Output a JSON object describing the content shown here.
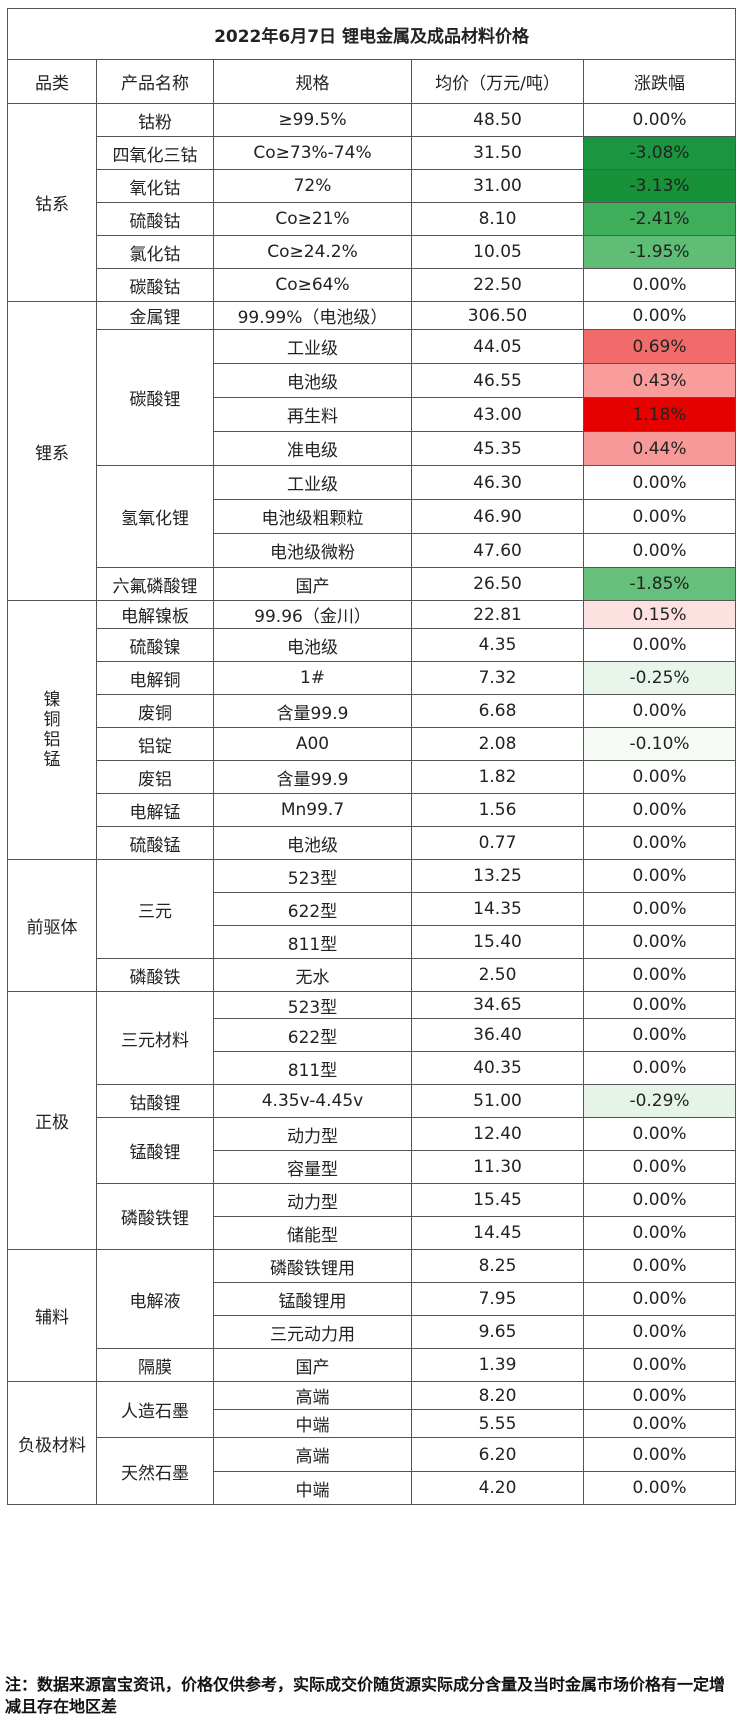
{
  "title": "2022年6月7日 锂电金属及成品材料价格",
  "headers": [
    "品类",
    "产品名称",
    "规格",
    "均价（万元/吨）",
    "涨跌幅"
  ],
  "categories": [
    {
      "name": "钴系",
      "groups": [
        {
          "product": "钴粉",
          "rows": [
            {
              "spec": "≥99.5%",
              "price": "48.50",
              "change": "0.00%",
              "color": "#ffffff"
            }
          ]
        },
        {
          "product": "四氧化三钴",
          "rows": [
            {
              "spec": "Co≥73%-74%",
              "price": "31.50",
              "change": "-3.08%",
              "color": "#1a9641"
            }
          ]
        },
        {
          "product": "氧化钴",
          "rows": [
            {
              "spec": "72%",
              "price": "31.00",
              "change": "-3.13%",
              "color": "#179238"
            }
          ]
        },
        {
          "product": "硫酸钴",
          "rows": [
            {
              "spec": "Co≥21%",
              "price": "8.10",
              "change": "-2.41%",
              "color": "#3fae5a"
            }
          ]
        },
        {
          "product": "氯化钴",
          "rows": [
            {
              "spec": "Co≥24.2%",
              "price": "10.05",
              "change": "-1.95%",
              "color": "#5fbd76"
            }
          ]
        },
        {
          "product": "碳酸钴",
          "rows": [
            {
              "spec": "Co≥64%",
              "price": "22.50",
              "change": "0.00%",
              "color": "#ffffff"
            }
          ]
        }
      ]
    },
    {
      "name": "锂系",
      "groups": [
        {
          "product": "金属锂",
          "rows": [
            {
              "spec": "99.99%（电池级）",
              "price": "306.50",
              "change": "0.00%",
              "color": "#ffffff"
            }
          ]
        },
        {
          "product": "碳酸锂",
          "rows": [
            {
              "spec": "工业级",
              "price": "44.05",
              "change": "0.69%",
              "color": "#f26b6b"
            },
            {
              "spec": "电池级",
              "price": "46.55",
              "change": "0.43%",
              "color": "#f89c9c"
            },
            {
              "spec": "再生料",
              "price": "43.00",
              "change": "1.18%",
              "color": "#e60000"
            },
            {
              "spec": "准电级",
              "price": "45.35",
              "change": "0.44%",
              "color": "#f79999"
            }
          ]
        },
        {
          "product": "氢氧化锂",
          "rows": [
            {
              "spec": "工业级",
              "price": "46.30",
              "change": "0.00%",
              "color": "#ffffff"
            },
            {
              "spec": "电池级粗颗粒",
              "price": "46.90",
              "change": "0.00%",
              "color": "#ffffff"
            },
            {
              "spec": "电池级微粉",
              "price": "47.60",
              "change": "0.00%",
              "color": "#ffffff"
            }
          ]
        },
        {
          "product": "六氟磷酸锂",
          "rows": [
            {
              "spec": "国产",
              "price": "26.50",
              "change": "-1.85%",
              "color": "#66c07b"
            }
          ]
        }
      ]
    },
    {
      "name": "镍铜铝锰",
      "vertical": true,
      "groups": [
        {
          "product": "电解镍板",
          "rows": [
            {
              "spec": "99.96（金川）",
              "price": "22.81",
              "change": "0.15%",
              "color": "#fde0e0"
            }
          ]
        },
        {
          "product": "硫酸镍",
          "rows": [
            {
              "spec": "电池级",
              "price": "4.35",
              "change": "0.00%",
              "color": "#ffffff"
            }
          ]
        },
        {
          "product": "电解铜",
          "rows": [
            {
              "spec": "1#",
              "price": "7.32",
              "change": "-0.25%",
              "color": "#e8f5ea"
            }
          ]
        },
        {
          "product": "废铜",
          "rows": [
            {
              "spec": "含量99.9",
              "price": "6.68",
              "change": "0.00%",
              "color": "#ffffff"
            }
          ]
        },
        {
          "product": "铝锭",
          "rows": [
            {
              "spec": "A00",
              "price": "2.08",
              "change": "-0.10%",
              "color": "#f6fbf6"
            }
          ]
        },
        {
          "product": "废铝",
          "rows": [
            {
              "spec": "含量99.9",
              "price": "1.82",
              "change": "0.00%",
              "color": "#ffffff"
            }
          ]
        },
        {
          "product": "电解锰",
          "rows": [
            {
              "spec": "Mn99.7",
              "price": "1.56",
              "change": "0.00%",
              "color": "#ffffff"
            }
          ]
        },
        {
          "product": "硫酸锰",
          "rows": [
            {
              "spec": "电池级",
              "price": "0.77",
              "change": "0.00%",
              "color": "#ffffff"
            }
          ]
        }
      ]
    },
    {
      "name": "前驱体",
      "groups": [
        {
          "product": "三元",
          "rows": [
            {
              "spec": "523型",
              "price": "13.25",
              "change": "0.00%",
              "color": "#ffffff"
            },
            {
              "spec": "622型",
              "price": "14.35",
              "change": "0.00%",
              "color": "#ffffff"
            },
            {
              "spec": "811型",
              "price": "15.40",
              "change": "0.00%",
              "color": "#ffffff"
            }
          ]
        },
        {
          "product": "磷酸铁",
          "rows": [
            {
              "spec": "无水",
              "price": "2.50",
              "change": "0.00%",
              "color": "#ffffff"
            }
          ]
        }
      ]
    },
    {
      "name": "正极",
      "groups": [
        {
          "product": "三元材料",
          "rows": [
            {
              "spec": "523型",
              "price": "34.65",
              "change": "0.00%",
              "color": "#ffffff"
            },
            {
              "spec": "622型",
              "price": "36.40",
              "change": "0.00%",
              "color": "#ffffff"
            },
            {
              "spec": "811型",
              "price": "40.35",
              "change": "0.00%",
              "color": "#ffffff"
            }
          ]
        },
        {
          "product": "钴酸锂",
          "rows": [
            {
              "spec": "4.35v-4.45v",
              "price": "51.00",
              "change": "-0.29%",
              "color": "#e6f4e8"
            }
          ]
        },
        {
          "product": "锰酸锂",
          "rows": [
            {
              "spec": "动力型",
              "price": "12.40",
              "change": "0.00%",
              "color": "#ffffff"
            },
            {
              "spec": "容量型",
              "price": "11.30",
              "change": "0.00%",
              "color": "#ffffff"
            }
          ]
        },
        {
          "product": "磷酸铁锂",
          "rows": [
            {
              "spec": "动力型",
              "price": "15.45",
              "change": "0.00%",
              "color": "#ffffff"
            },
            {
              "spec": "储能型",
              "price": "14.45",
              "change": "0.00%",
              "color": "#ffffff"
            }
          ]
        }
      ]
    },
    {
      "name": "辅料",
      "groups": [
        {
          "product": "电解液",
          "rows": [
            {
              "spec": "磷酸铁锂用",
              "price": "8.25",
              "change": "0.00%",
              "color": "#ffffff"
            },
            {
              "spec": "锰酸锂用",
              "price": "7.95",
              "change": "0.00%",
              "color": "#ffffff"
            },
            {
              "spec": "三元动力用",
              "price": "9.65",
              "change": "0.00%",
              "color": "#ffffff"
            }
          ]
        },
        {
          "product": "隔膜",
          "rows": [
            {
              "spec": "国产",
              "price": "1.39",
              "change": "0.00%",
              "color": "#ffffff"
            }
          ]
        }
      ]
    },
    {
      "name": "负极材料",
      "groups": [
        {
          "product": "人造石墨",
          "rows": [
            {
              "spec": "高端",
              "price": "8.20",
              "change": "0.00%",
              "color": "#ffffff"
            },
            {
              "spec": "中端",
              "price": "5.55",
              "change": "0.00%",
              "color": "#ffffff"
            }
          ]
        },
        {
          "product": "天然石墨",
          "rows": [
            {
              "spec": "高端",
              "price": "6.20",
              "change": "0.00%",
              "color": "#ffffff"
            },
            {
              "spec": "中端",
              "price": "4.20",
              "change": "0.00%",
              "color": "#ffffff"
            }
          ]
        }
      ]
    }
  ],
  "note": "注：数据来源富宝资讯，价格仅供参考，实际成交价随货源实际成分含量及当时金属市场价格有一定增减且存在地区差"
}
